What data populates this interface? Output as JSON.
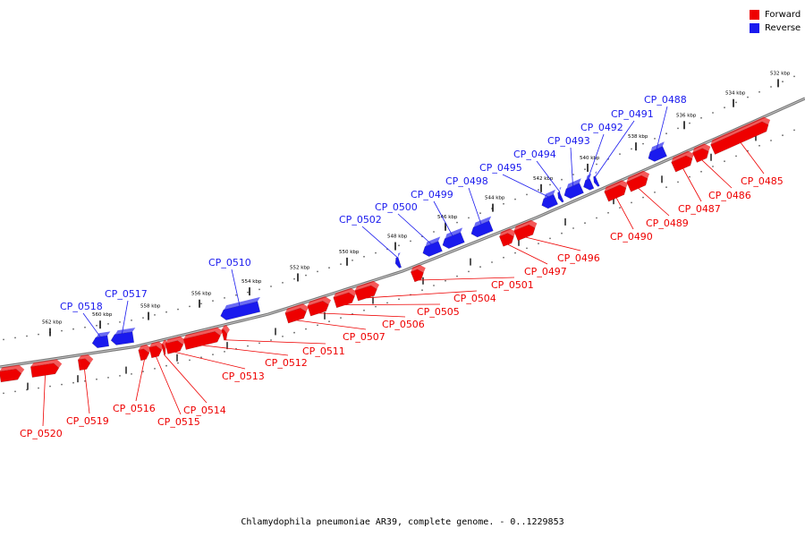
{
  "legend": {
    "forward_label": "Forward",
    "reverse_label": "Reverse",
    "forward_color": "#ee0000",
    "reverse_color": "#1a1aee"
  },
  "caption": "Chlamydophila pneumoniae AR39, complete genome. - 0..1229853",
  "colors": {
    "forward": "#ee0000",
    "reverse": "#1a1aee",
    "backbone": "#888888"
  },
  "scale_unit": "kbp",
  "ticks": [
    532,
    534,
    536,
    538,
    540,
    542,
    544,
    546,
    548,
    550,
    552,
    554,
    556,
    558,
    560,
    562
  ],
  "genes": [
    {
      "name": "CP_0485",
      "strand": "forward"
    },
    {
      "name": "CP_0486",
      "strand": "forward"
    },
    {
      "name": "CP_0487",
      "strand": "forward"
    },
    {
      "name": "CP_0488",
      "strand": "reverse"
    },
    {
      "name": "CP_0489",
      "strand": "forward"
    },
    {
      "name": "CP_0490",
      "strand": "forward"
    },
    {
      "name": "CP_0491",
      "strand": "reverse"
    },
    {
      "name": "CP_0492",
      "strand": "reverse"
    },
    {
      "name": "CP_0493",
      "strand": "reverse"
    },
    {
      "name": "CP_0494",
      "strand": "reverse"
    },
    {
      "name": "CP_0495",
      "strand": "reverse"
    },
    {
      "name": "CP_0496",
      "strand": "forward"
    },
    {
      "name": "CP_0497",
      "strand": "forward"
    },
    {
      "name": "CP_0498",
      "strand": "reverse"
    },
    {
      "name": "CP_0499",
      "strand": "reverse"
    },
    {
      "name": "CP_0500",
      "strand": "reverse"
    },
    {
      "name": "CP_0501",
      "strand": "forward"
    },
    {
      "name": "CP_0502",
      "strand": "reverse"
    },
    {
      "name": "CP_0504",
      "strand": "forward"
    },
    {
      "name": "CP_0505",
      "strand": "forward"
    },
    {
      "name": "CP_0506",
      "strand": "forward"
    },
    {
      "name": "CP_0507",
      "strand": "forward"
    },
    {
      "name": "CP_0510",
      "strand": "reverse"
    },
    {
      "name": "CP_0511",
      "strand": "forward"
    },
    {
      "name": "CP_0512",
      "strand": "forward"
    },
    {
      "name": "CP_0513",
      "strand": "forward"
    },
    {
      "name": "CP_0514",
      "strand": "forward"
    },
    {
      "name": "CP_0515",
      "strand": "forward"
    },
    {
      "name": "CP_0516",
      "strand": "forward"
    },
    {
      "name": "CP_0517",
      "strand": "reverse"
    },
    {
      "name": "CP_0518",
      "strand": "reverse"
    },
    {
      "name": "CP_0519",
      "strand": "forward"
    },
    {
      "name": "CP_0520",
      "strand": "forward"
    }
  ]
}
